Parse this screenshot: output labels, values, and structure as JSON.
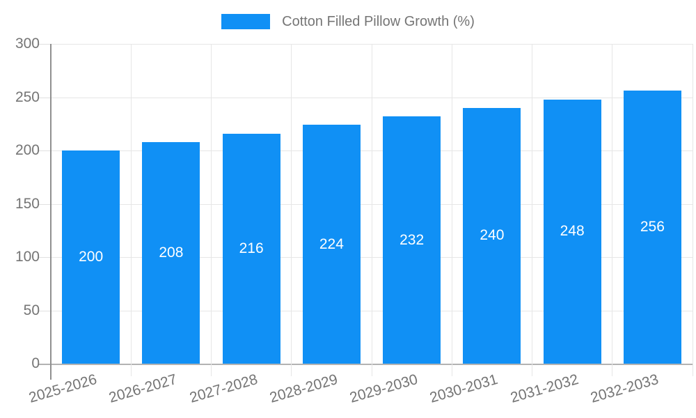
{
  "chart_data": {
    "type": "bar",
    "title": "",
    "legend_label": "Cotton Filled Pillow Growth (%)",
    "legend_position": "top-center",
    "categories": [
      "2025-2026",
      "2026-2027",
      "2027-2028",
      "2028-2029",
      "2029-2030",
      "2030-2031",
      "2031-2032",
      "2032-2033"
    ],
    "values": [
      200,
      208,
      216,
      224,
      232,
      240,
      248,
      256
    ],
    "value_labels": "inside-center",
    "xlabel": "",
    "ylabel": "",
    "ylim": [
      0,
      300
    ],
    "yticks": [
      0,
      50,
      100,
      150,
      200,
      250,
      300
    ],
    "grid": true,
    "bar_color": "#1090f5",
    "value_label_color": "#ffffff",
    "axis_text_color": "#757575",
    "background": "#ffffff"
  }
}
